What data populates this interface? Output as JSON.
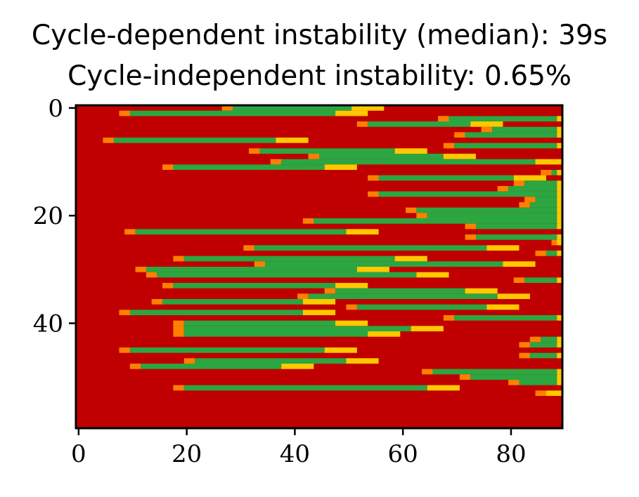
{
  "chart_data": {
    "type": "heatmap",
    "title_line1": "Cycle-dependent instability (median): 39s",
    "title_line2": "Cycle-independent instability: 0.65%",
    "xlabel": "",
    "ylabel": "",
    "xlim": [
      -0.5,
      89.5
    ],
    "ylim": [
      59.5,
      -0.5
    ],
    "x_ticks": [
      0,
      20,
      40,
      60,
      80
    ],
    "y_ticks": [
      0,
      20,
      40
    ],
    "grid": false,
    "colors": {
      "background": "#c00000",
      "stable": "#2ba640",
      "onset": "#ff8000",
      "ending": "#ffc800"
    },
    "rows": [
      {
        "y": 0,
        "onset": 27,
        "stable_end": 51,
        "ending_end": 57
      },
      {
        "y": 1,
        "onset": 8,
        "stable_end": 48,
        "ending_end": 54
      },
      {
        "y": 2,
        "onset": 67,
        "stable_end": 89,
        "ending_end": 90
      },
      {
        "y": 3,
        "onset": 52,
        "stable_end": 73,
        "ending_end": 79
      },
      {
        "y": 4,
        "onset": 75,
        "stable_end": 89,
        "ending_end": 90
      },
      {
        "y": 5,
        "onset": 70,
        "stable_end": 89,
        "ending_end": 90
      },
      {
        "y": 6,
        "onset": 5,
        "stable_end": 37,
        "ending_end": 43
      },
      {
        "y": 7,
        "onset": 68,
        "stable_end": 89,
        "ending_end": 90
      },
      {
        "y": 8,
        "onset": 32,
        "stable_end": 59,
        "ending_end": 65
      },
      {
        "y": 9,
        "onset": 43,
        "stable_end": 68,
        "ending_end": 74
      },
      {
        "y": 10,
        "onset": 36,
        "stable_end": 85,
        "ending_end": 90
      },
      {
        "y": 11,
        "onset": 16,
        "stable_end": 46,
        "ending_end": 52
      },
      {
        "y": 12,
        "onset": 86,
        "stable_end": 89,
        "ending_end": 90
      },
      {
        "y": 13,
        "onset": 54,
        "stable_end": 81,
        "ending_end": 87
      },
      {
        "y": 14,
        "onset": 81,
        "stable_end": 89,
        "ending_end": 90
      },
      {
        "y": 15,
        "onset": 78,
        "stable_end": 89,
        "ending_end": 90
      },
      {
        "y": 16,
        "onset": 54,
        "stable_end": 89,
        "ending_end": 90
      },
      {
        "y": 17,
        "onset": 83,
        "stable_end": 89,
        "ending_end": 90
      },
      {
        "y": 18,
        "onset": 82,
        "stable_end": 89,
        "ending_end": 90
      },
      {
        "y": 19,
        "onset": 61,
        "stable_end": 89,
        "ending_end": 90
      },
      {
        "y": 20,
        "onset": 63,
        "stable_end": 89,
        "ending_end": 90
      },
      {
        "y": 21,
        "onset": 42,
        "stable_end": 89,
        "ending_end": 90
      },
      {
        "y": 22,
        "onset": 72,
        "stable_end": 89,
        "ending_end": 90
      },
      {
        "y": 23,
        "onset": 9,
        "stable_end": 50,
        "ending_end": 56
      },
      {
        "y": 24,
        "onset": 72,
        "stable_end": 89,
        "ending_end": 90
      },
      {
        "y": 25,
        "onset": 88,
        "stable_end": 89,
        "ending_end": 90
      },
      {
        "y": 26,
        "onset": 31,
        "stable_end": 76,
        "ending_end": 82
      },
      {
        "y": 27,
        "onset": 85,
        "stable_end": 89,
        "ending_end": 90
      },
      {
        "y": 28,
        "onset": 18,
        "stable_end": 59,
        "ending_end": 65
      },
      {
        "y": 29,
        "onset": 33,
        "stable_end": 79,
        "ending_end": 85
      },
      {
        "y": 30,
        "onset": 11,
        "stable_end": 52,
        "ending_end": 58
      },
      {
        "y": 31,
        "onset": 13,
        "stable_end": 63,
        "ending_end": 69
      },
      {
        "y": 32,
        "onset": 81,
        "stable_end": 89,
        "ending_end": 90
      },
      {
        "y": 33,
        "onset": 16,
        "stable_end": 48,
        "ending_end": 54
      },
      {
        "y": 34,
        "onset": 46,
        "stable_end": 72,
        "ending_end": 78
      },
      {
        "y": 35,
        "onset": 41,
        "stable_end": 78,
        "ending_end": 84
      },
      {
        "y": 36,
        "onset": 14,
        "stable_end": 42,
        "ending_end": 48
      },
      {
        "y": 37,
        "onset": 50,
        "stable_end": 76,
        "ending_end": 82
      },
      {
        "y": 38,
        "onset": 8,
        "stable_end": 42,
        "ending_end": 48
      },
      {
        "y": 39,
        "onset": 68,
        "stable_end": 89,
        "ending_end": 90
      },
      {
        "y": 40,
        "onset": 18,
        "stable_end": 48,
        "ending_end": 54
      },
      {
        "y": 41,
        "onset": 18,
        "stable_end": 62,
        "ending_end": 68
      },
      {
        "y": 42,
        "onset": 18,
        "stable_end": 54,
        "ending_end": 60
      },
      {
        "y": 43,
        "onset": 84,
        "stable_end": 89,
        "ending_end": 90
      },
      {
        "y": 44,
        "onset": 82,
        "stable_end": 89,
        "ending_end": 90
      },
      {
        "y": 45,
        "onset": 8,
        "stable_end": 46,
        "ending_end": 52
      },
      {
        "y": 46,
        "onset": 82,
        "stable_end": 89,
        "ending_end": 90
      },
      {
        "y": 47,
        "onset": 20,
        "stable_end": 50,
        "ending_end": 56
      },
      {
        "y": 48,
        "onset": 10,
        "stable_end": 38,
        "ending_end": 44
      },
      {
        "y": 49,
        "onset": 64,
        "stable_end": 89,
        "ending_end": 90
      },
      {
        "y": 50,
        "onset": 71,
        "stable_end": 89,
        "ending_end": 90
      },
      {
        "y": 51,
        "onset": 80,
        "stable_end": 89,
        "ending_end": 90
      },
      {
        "y": 52,
        "onset": 18,
        "stable_end": 65,
        "ending_end": 71
      },
      {
        "y": 53,
        "onset": 85,
        "stable_end": 87,
        "ending_end": 90
      }
    ]
  }
}
